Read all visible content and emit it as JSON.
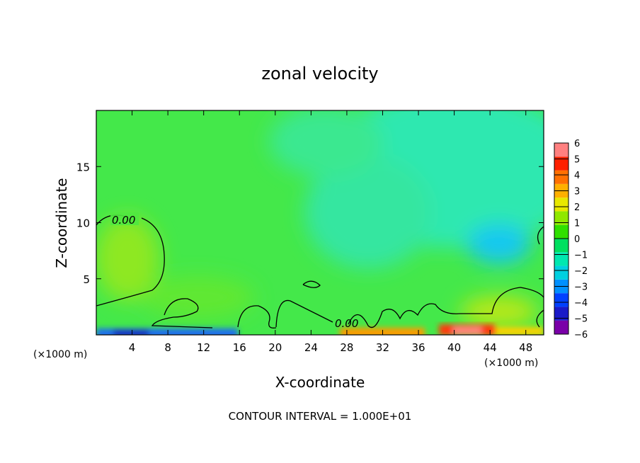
{
  "chart_data": {
    "type": "heatmap",
    "title": "zonal velocity",
    "xlabel": "X-coordinate",
    "ylabel": "Z-coordinate",
    "x_unit": "(×1000 m)",
    "x_unit_right": "(×1000 m)",
    "xlim": [
      0,
      50
    ],
    "ylim": [
      0,
      20
    ],
    "xticks": [
      4,
      8,
      12,
      16,
      20,
      24,
      28,
      32,
      36,
      40,
      44,
      48
    ],
    "xtick_labels": [
      "4",
      "8",
      "12",
      "16",
      "20",
      "24",
      "28",
      "32",
      "36",
      "40",
      "44",
      "48"
    ],
    "yticks": [
      5,
      10,
      15
    ],
    "ytick_labels": [
      "5",
      "10",
      "15"
    ],
    "colorbar": {
      "levels": [
        -6,
        -5,
        -4,
        -3,
        -2,
        -1,
        0,
        1,
        2,
        3,
        4,
        5,
        6
      ],
      "labels": [
        "6",
        "5",
        "4",
        "3",
        "2",
        "1",
        "0",
        "−1",
        "−2",
        "−3",
        "−4",
        "−5",
        "−6"
      ],
      "colors": [
        "#7a00a8",
        "#1a1ac8",
        "#0040ff",
        "#0090ff",
        "#00d0e0",
        "#00e8b0",
        "#00e060",
        "#30e000",
        "#90e800",
        "#e8e800",
        "#ffb000",
        "#ff7000",
        "#ff2000",
        "#ff8080"
      ]
    },
    "contour_labels": [
      {
        "text": "0.00",
        "x": 3.5,
        "y": 10.2
      },
      {
        "text": "0.00",
        "x": 28.0,
        "y": 1.0
      }
    ],
    "footer": "CONTOUR INTERVAL = 1.000E+01"
  }
}
